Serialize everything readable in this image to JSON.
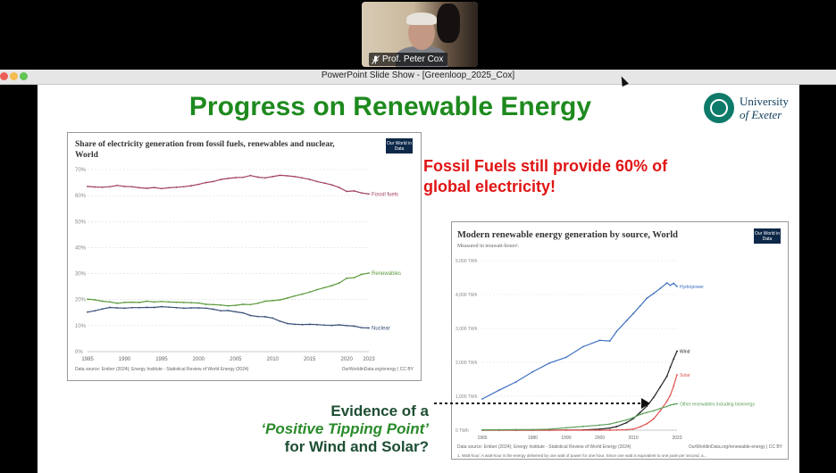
{
  "video": {
    "participant_name": "Prof. Peter Cox"
  },
  "window": {
    "title": "PowerPoint Slide Show - [Greenloop_2025_Cox]"
  },
  "colors": {
    "title_green": "#1e8a1e",
    "callout_red": "#e01414",
    "exeter_teal": "#0e7a6a",
    "owid_navy": "#0d2848"
  },
  "slide": {
    "title": "Progress on Renewable Energy",
    "logo_line1": "University",
    "logo_line2": "of Exeter",
    "callout": "Fossil Fuels still provide 60% of global electricity!",
    "evidence_line1": "Evidence of a",
    "evidence_line2": "‘Positive Tipping Point’",
    "evidence_line3": "for Wind and Solar?"
  },
  "owid_badge": "Our World in Data",
  "chart_data": [
    {
      "type": "line",
      "title": "Share of electricity generation from fossil fuels, renewables and nuclear, World",
      "source": "Data source: Ember (2024); Energy Institute - Statistical Review of World Energy (2024)",
      "credit": "OurWorldinData.org/energy | CC BY",
      "ylim": [
        0,
        70
      ],
      "y_ticks": [
        "0%",
        "10%",
        "20%",
        "30%",
        "40%",
        "50%",
        "60%",
        "70%"
      ],
      "x_ticks": [
        "1985",
        "1990",
        "1995",
        "2000",
        "2005",
        "2010",
        "2015",
        "2020",
        "2023"
      ],
      "x": [
        1985,
        1986,
        1987,
        1988,
        1989,
        1990,
        1991,
        1992,
        1993,
        1994,
        1995,
        1996,
        1997,
        1998,
        1999,
        2000,
        2001,
        2002,
        2003,
        2004,
        2005,
        2006,
        2007,
        2008,
        2009,
        2010,
        2011,
        2012,
        2013,
        2014,
        2015,
        2016,
        2017,
        2018,
        2019,
        2020,
        2021,
        2022,
        2023
      ],
      "series": [
        {
          "name": "Fossil fuels",
          "color": "#a04060",
          "values": [
            63.5,
            63.3,
            63.2,
            63.4,
            63.9,
            63.5,
            63.4,
            63.0,
            62.8,
            63.1,
            62.7,
            63.0,
            63.2,
            63.4,
            63.8,
            64.3,
            65.0,
            65.4,
            66.2,
            66.6,
            66.9,
            67.0,
            67.7,
            67.1,
            66.8,
            67.3,
            67.8,
            67.6,
            67.3,
            66.8,
            66.2,
            65.4,
            64.8,
            64.1,
            63.1,
            61.6,
            61.8,
            61.0,
            60.6
          ]
        },
        {
          "name": "Renewables",
          "color": "#5a9a3a",
          "values": [
            20.2,
            19.9,
            19.4,
            19.1,
            18.6,
            18.9,
            19.0,
            18.9,
            19.4,
            19.1,
            19.3,
            19.1,
            19.0,
            18.9,
            18.8,
            18.7,
            18.2,
            18.1,
            17.9,
            17.6,
            17.8,
            18.2,
            18.1,
            18.6,
            19.4,
            19.6,
            19.9,
            20.6,
            21.4,
            22.1,
            22.9,
            23.8,
            24.6,
            25.4,
            26.4,
            28.2,
            28.4,
            29.7,
            30.2
          ]
        },
        {
          "name": "Nuclear",
          "color": "#3a4f7a",
          "values": [
            15.2,
            15.7,
            16.4,
            17.0,
            16.8,
            16.7,
            16.9,
            16.9,
            17.0,
            17.0,
            17.3,
            17.1,
            16.9,
            16.7,
            16.8,
            16.8,
            16.7,
            16.3,
            15.7,
            15.8,
            15.3,
            14.9,
            13.9,
            13.5,
            13.4,
            12.9,
            11.7,
            10.8,
            10.5,
            10.4,
            10.5,
            10.4,
            10.2,
            10.1,
            10.3,
            10.0,
            9.8,
            9.2,
            9.1
          ]
        }
      ]
    },
    {
      "type": "line",
      "title": "Modern renewable energy generation by source, World",
      "subtitle": "Measured in terawatt-hours¹.",
      "source": "Data source: Ember (2024); Energy Institute - Statistical Review of World Energy (2024)",
      "credit": "OurWorldinData.org/renewable-energy | CC BY",
      "footnote": "1. Watt-hour: A watt-hour is the energy delivered by one watt of power for one hour. Since one watt is equivalent to one joule per second, a...",
      "ylim": [
        0,
        5000
      ],
      "y_ticks": [
        "0 TWh",
        "1,000 TWh",
        "2,000 TWh",
        "3,000 TWh",
        "4,000 TWh",
        "5,000 TWh"
      ],
      "x_ticks": [
        "1965",
        "1980",
        "1990",
        "2000",
        "2010",
        "2023"
      ],
      "x": [
        1965,
        1970,
        1975,
        1980,
        1985,
        1990,
        1995,
        2000,
        2003,
        2005,
        2008,
        2010,
        2012,
        2014,
        2016,
        2018,
        2020,
        2021,
        2022,
        2023
      ],
      "series": [
        {
          "name": "Hydropower",
          "color": "#3d6fc0",
          "values": [
            920,
            1180,
            1420,
            1720,
            1980,
            2150,
            2460,
            2650,
            2630,
            2910,
            3230,
            3440,
            3660,
            3890,
            4030,
            4180,
            4340,
            4270,
            4330,
            4240
          ]
        },
        {
          "name": "Wind",
          "color": "#222222",
          "values": [
            0,
            0,
            0,
            0,
            0,
            4,
            8,
            31,
            63,
            104,
            220,
            342,
            522,
            707,
            960,
            1270,
            1590,
            1860,
            2100,
            2330
          ]
        },
        {
          "name": "Solar",
          "color": "#e05050",
          "values": [
            0,
            0,
            0,
            0,
            0,
            0,
            0,
            1,
            1,
            4,
            12,
            32,
            98,
            190,
            330,
            570,
            850,
            1030,
            1300,
            1630
          ]
        },
        {
          "name": "Other renewables including bioenergy",
          "color": "#5aa05a",
          "values": [
            10,
            12,
            15,
            18,
            30,
            70,
            110,
            150,
            180,
            230,
            300,
            370,
            460,
            520,
            570,
            640,
            700,
            740,
            760,
            780
          ]
        }
      ]
    }
  ]
}
